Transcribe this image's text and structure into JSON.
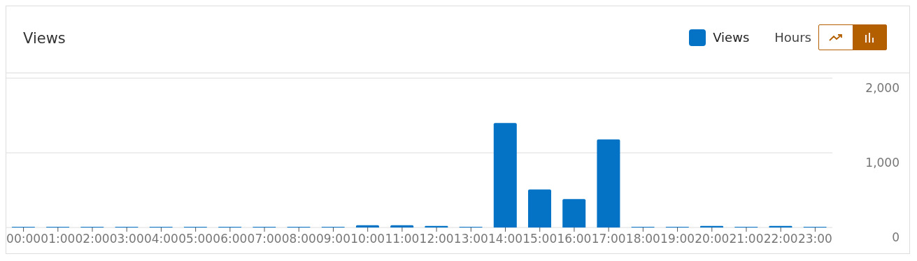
{
  "chart_data": {
    "type": "bar",
    "title": "Views",
    "categories": [
      "00:00",
      "01:00",
      "02:00",
      "03:00",
      "04:00",
      "05:00",
      "06:00",
      "07:00",
      "08:00",
      "09:00",
      "10:00",
      "11:00",
      "12:00",
      "13:00",
      "14:00",
      "15:00",
      "16:00",
      "17:00",
      "18:00",
      "19:00",
      "20:00",
      "21:00",
      "22:00",
      "23:00"
    ],
    "series": [
      {
        "name": "Views",
        "color": "#0573c5",
        "values": [
          10,
          10,
          10,
          10,
          10,
          10,
          10,
          10,
          10,
          10,
          30,
          30,
          20,
          10,
          1400,
          510,
          380,
          1180,
          10,
          10,
          20,
          10,
          20,
          10
        ]
      }
    ],
    "ylim": [
      0,
      2000
    ],
    "yticks": [
      {
        "value": 0,
        "label": "0"
      },
      {
        "value": 1000,
        "label": "1,000"
      },
      {
        "value": 2000,
        "label": "2,000"
      }
    ],
    "grid": "y",
    "legend": "top right",
    "annotations": [
      "Hours"
    ]
  }
}
